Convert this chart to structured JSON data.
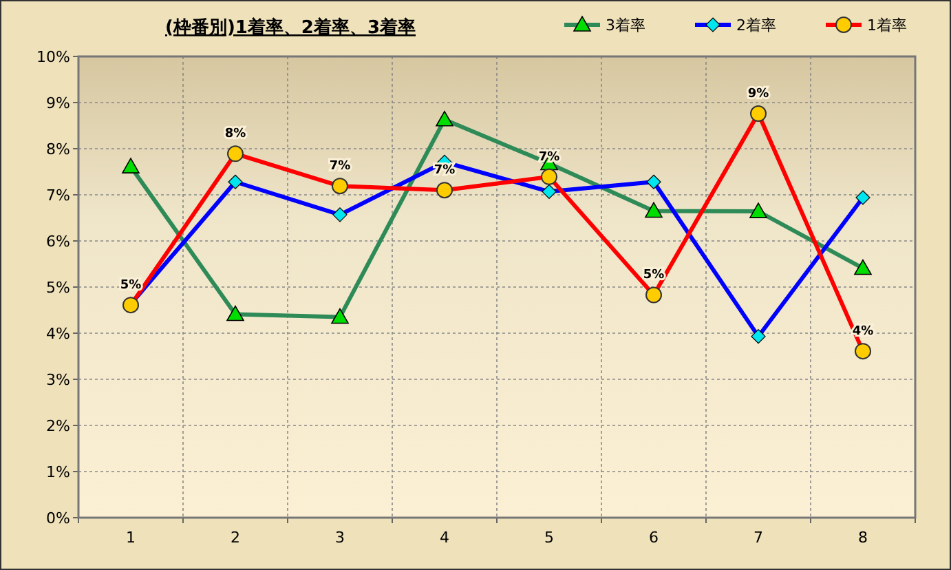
{
  "chart_data": {
    "type": "line",
    "title": "(枠番別)1着率、2着率、3着率",
    "categories": [
      "1",
      "2",
      "3",
      "4",
      "5",
      "6",
      "7",
      "8"
    ],
    "series": [
      {
        "name": "3着率",
        "color": "#2e8b57",
        "marker": "triangle",
        "values": [
          7.61,
          4.41,
          4.35,
          8.63,
          7.68,
          6.65,
          6.64,
          5.41
        ]
      },
      {
        "name": "2着率",
        "color": "#0000ff",
        "marker": "diamond",
        "values": [
          4.63,
          7.28,
          6.57,
          7.71,
          7.07,
          7.28,
          3.93,
          6.94
        ]
      },
      {
        "name": "1着率",
        "color": "#ff0000",
        "marker": "circle",
        "values": [
          4.61,
          7.89,
          7.19,
          7.1,
          7.39,
          4.83,
          8.76,
          3.61
        ],
        "value_labels": [
          "5%",
          "8%",
          "7%",
          "7%",
          "7%",
          "5%",
          "9%",
          "4%"
        ]
      }
    ],
    "ylim": [
      0,
      10
    ],
    "yticks": [
      {
        "value": 0,
        "label": "0%"
      },
      {
        "value": 1,
        "label": "1%"
      },
      {
        "value": 2,
        "label": "2%"
      },
      {
        "value": 3,
        "label": "3%"
      },
      {
        "value": 4,
        "label": "4%"
      },
      {
        "value": 5,
        "label": "5%"
      },
      {
        "value": 6,
        "label": "6%"
      },
      {
        "value": 7,
        "label": "7%"
      },
      {
        "value": 8,
        "label": "8%"
      },
      {
        "value": 9,
        "label": "9%"
      },
      {
        "value": 10,
        "label": "10%"
      }
    ],
    "grid": true,
    "legend": "top right",
    "line_style": "solid"
  }
}
